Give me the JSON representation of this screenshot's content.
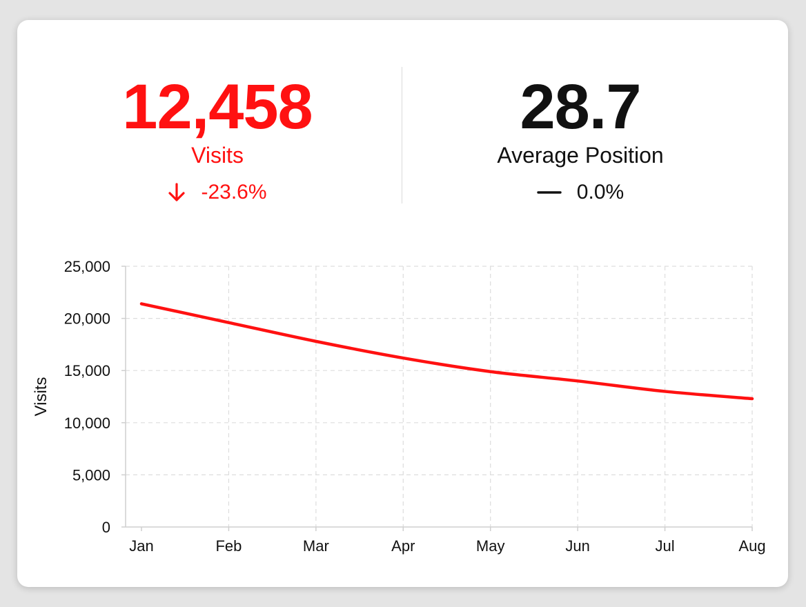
{
  "colors": {
    "negative": "#ff1111",
    "neutral": "#111111",
    "grid": "#dddddd",
    "axis": "#cfcfcf"
  },
  "metrics": {
    "visits": {
      "value": "12,458",
      "label": "Visits",
      "change": "-23.6%",
      "trend_icon": "arrow-down-icon"
    },
    "avg_position": {
      "value": "28.7",
      "label": "Average Position",
      "change": "0.0%",
      "trend_icon": "dash-icon"
    }
  },
  "chart_data": {
    "type": "line",
    "categories": [
      "Jan",
      "Feb",
      "Mar",
      "Apr",
      "May",
      "Jun",
      "Jul",
      "Aug"
    ],
    "series": [
      {
        "values": [
          21400,
          19600,
          17800,
          16200,
          14900,
          14000,
          13000,
          12300
        ],
        "color": "#ff1111"
      }
    ],
    "ylabel": "Visits",
    "xlabel": "",
    "ylim": [
      0,
      25000
    ],
    "yticks": [
      0,
      5000,
      10000,
      15000,
      20000,
      25000
    ],
    "ytick_labels": [
      "0",
      "5,000",
      "10,000",
      "15,000",
      "20,000",
      "25,000"
    ],
    "grid": true,
    "grid_style": "dashed"
  }
}
